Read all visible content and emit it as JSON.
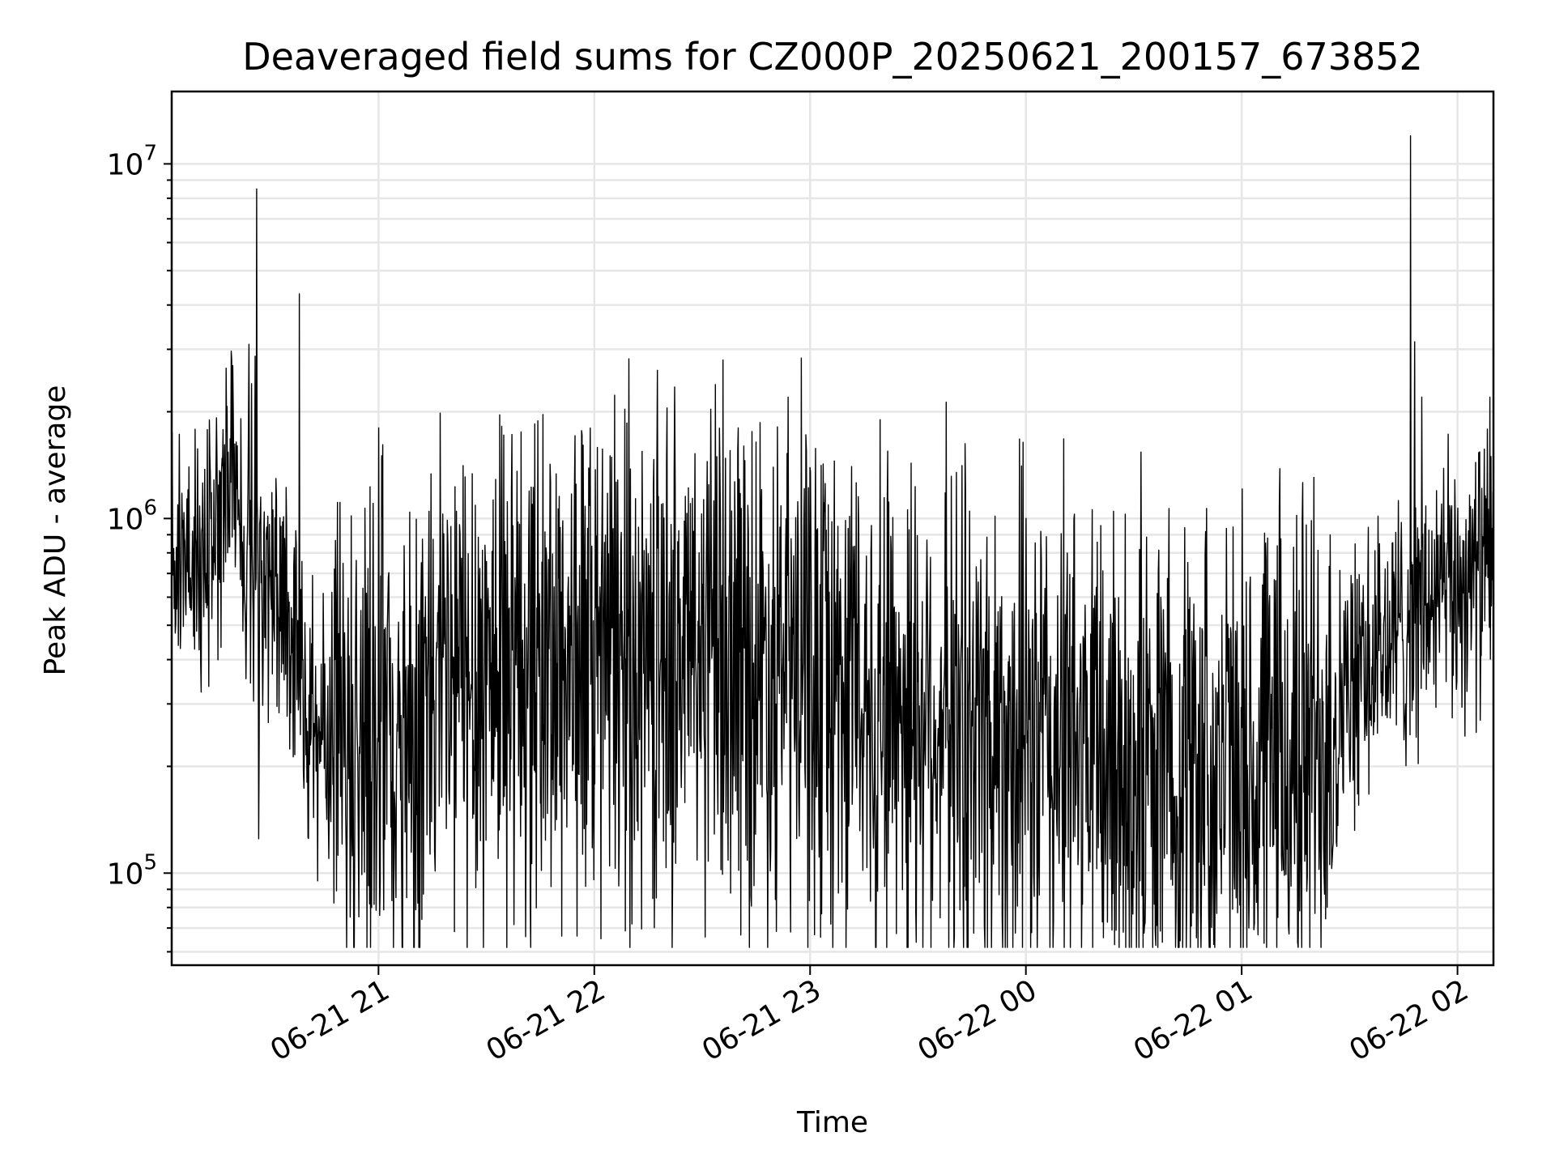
{
  "chart_data": {
    "type": "line",
    "title": "Deaveraged field sums for CZ000P_20250621_200157_673852",
    "xlabel": "Time",
    "ylabel": "Peak ADU - average",
    "y_scale": "log",
    "ylim": [
      55000,
      16000000
    ],
    "xlim": [
      "2025-06-21T20:02:30",
      "2025-06-22T02:10:00"
    ],
    "grid": true,
    "line_color": "#000000",
    "x_ticks": [
      {
        "t": "2025-06-21T21:00:00",
        "label": "06-21 21"
      },
      {
        "t": "2025-06-21T22:00:00",
        "label": "06-21 22"
      },
      {
        "t": "2025-06-21T23:00:00",
        "label": "06-21 23"
      },
      {
        "t": "2025-06-22T00:00:00",
        "label": "06-22 00"
      },
      {
        "t": "2025-06-22T01:00:00",
        "label": "06-22 01"
      },
      {
        "t": "2025-06-22T02:00:00",
        "label": "06-22 02"
      }
    ],
    "y_ticks": [
      {
        "value": 100000,
        "base": "10",
        "exp": "5"
      },
      {
        "value": 1000000,
        "base": "10",
        "exp": "6"
      },
      {
        "value": 10000000,
        "base": "10",
        "exp": "7"
      }
    ],
    "series": [
      {
        "x": [
          "2025-06-21T20:02:30",
          "2025-06-21T20:10:00",
          "2025-06-21T20:15:00",
          "2025-06-21T20:20:00",
          "2025-06-21T20:24:00",
          "2025-06-21T20:26:30",
          "2025-06-21T20:28:00",
          "2025-06-21T20:30:00",
          "2025-06-21T20:32:00",
          "2025-06-21T20:36:00",
          "2025-06-21T20:40:00",
          "2025-06-21T20:45:00",
          "2025-06-21T20:50:00",
          "2025-06-21T20:55:00",
          "2025-06-21T21:00:00",
          "2025-06-21T21:15:00",
          "2025-06-21T21:30:00",
          "2025-06-21T22:00:00",
          "2025-06-21T22:30:00",
          "2025-06-21T23:00:00",
          "2025-06-21T23:30:00",
          "2025-06-22T00:00:00",
          "2025-06-22T00:30:00",
          "2025-06-22T01:00:00",
          "2025-06-22T01:15:00",
          "2025-06-22T01:30:00",
          "2025-06-22T01:45:00",
          "2025-06-22T02:00:00",
          "2025-06-22T02:10:00"
        ],
        "values": [
          800000,
          700000,
          900000,
          1300000,
          800000,
          650000,
          700000,
          650000,
          550000,
          450000,
          300000,
          250000,
          230000,
          220000,
          230000,
          300000,
          380000,
          400000,
          420000,
          360000,
          300000,
          230000,
          200000,
          190000,
          210000,
          320000,
          500000,
          650000,
          750000
        ],
        "spikes": [
          {
            "t": "2025-06-21T20:24:00",
            "value": 3100000
          },
          {
            "t": "2025-06-21T20:24:40",
            "value": 2400000
          },
          {
            "t": "2025-06-21T20:26:10",
            "value": 8500000
          },
          {
            "t": "2025-06-21T20:26:40",
            "value": 125000
          },
          {
            "t": "2025-06-21T20:38:00",
            "value": 4300000
          },
          {
            "t": "2025-06-21T20:58:00",
            "value": 80000
          },
          {
            "t": "2025-06-21T21:00:00",
            "value": 1800000
          },
          {
            "t": "2025-06-21T21:00:20",
            "value": 76000
          },
          {
            "t": "2025-06-21T22:40:00",
            "value": 1800000
          },
          {
            "t": "2025-06-22T01:02:00",
            "value": 70000
          },
          {
            "t": "2025-06-22T01:04:30",
            "value": 67000
          },
          {
            "t": "2025-06-22T01:47:00",
            "value": 12000000
          },
          {
            "t": "2025-06-22T01:50:00",
            "value": 2200000
          },
          {
            "t": "2025-06-22T02:09:00",
            "value": 2200000
          }
        ]
      }
    ]
  }
}
